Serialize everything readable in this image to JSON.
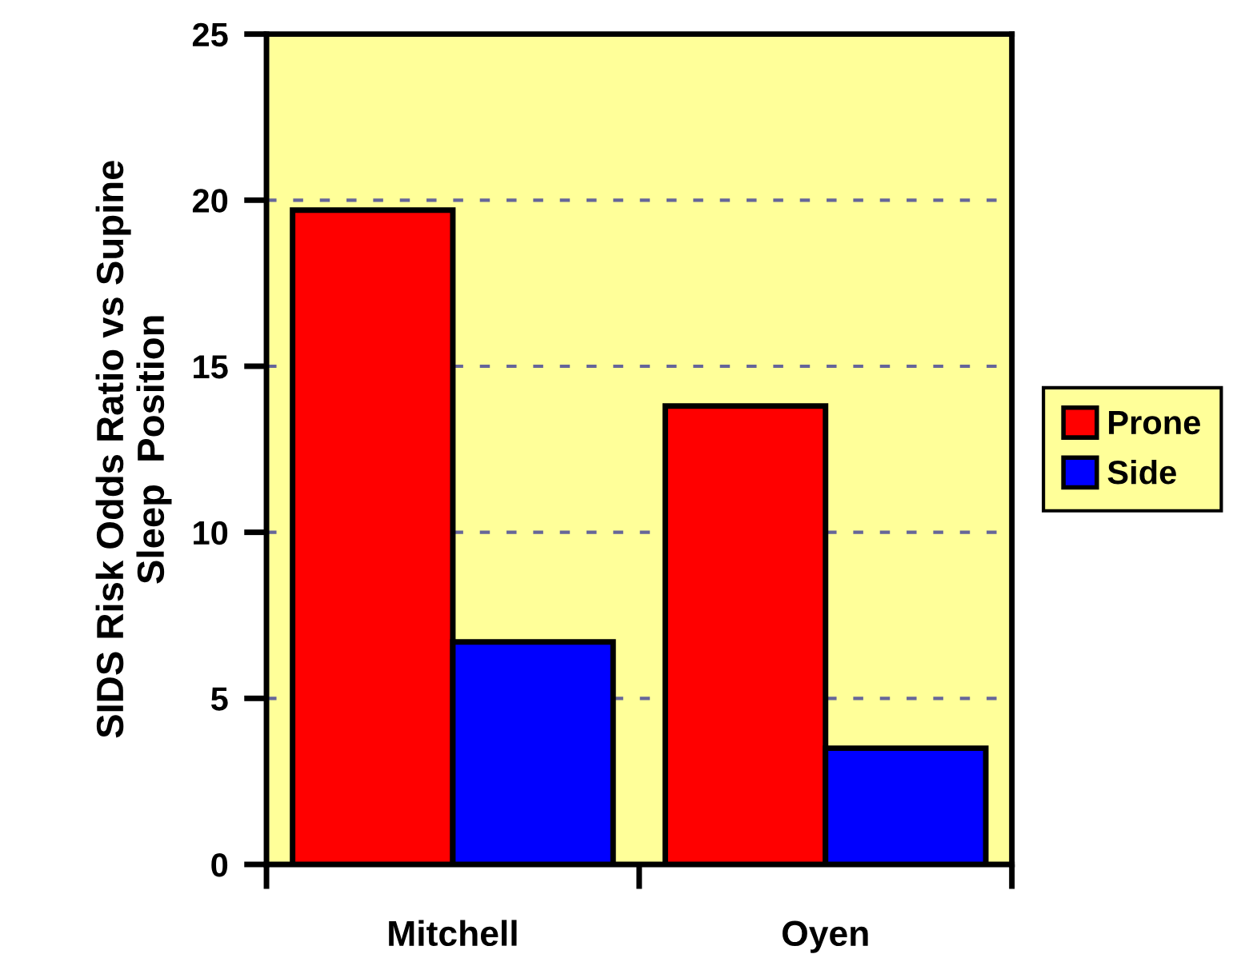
{
  "chart_data": {
    "type": "bar",
    "ylabel": "SIDS Risk Odds Ratio vs Supine\nSleep  Position",
    "categories": [
      "Mitchell",
      "Oyen"
    ],
    "series": [
      {
        "name": "Prone",
        "color": "#ff0000",
        "values": [
          19.7,
          13.8
        ]
      },
      {
        "name": "Side",
        "color": "#0000ff",
        "values": [
          6.7,
          3.5
        ]
      }
    ],
    "ylim": [
      0,
      25
    ],
    "yticks": [
      0,
      5,
      10,
      15,
      20,
      25
    ],
    "grid": "y",
    "legend": "right"
  }
}
